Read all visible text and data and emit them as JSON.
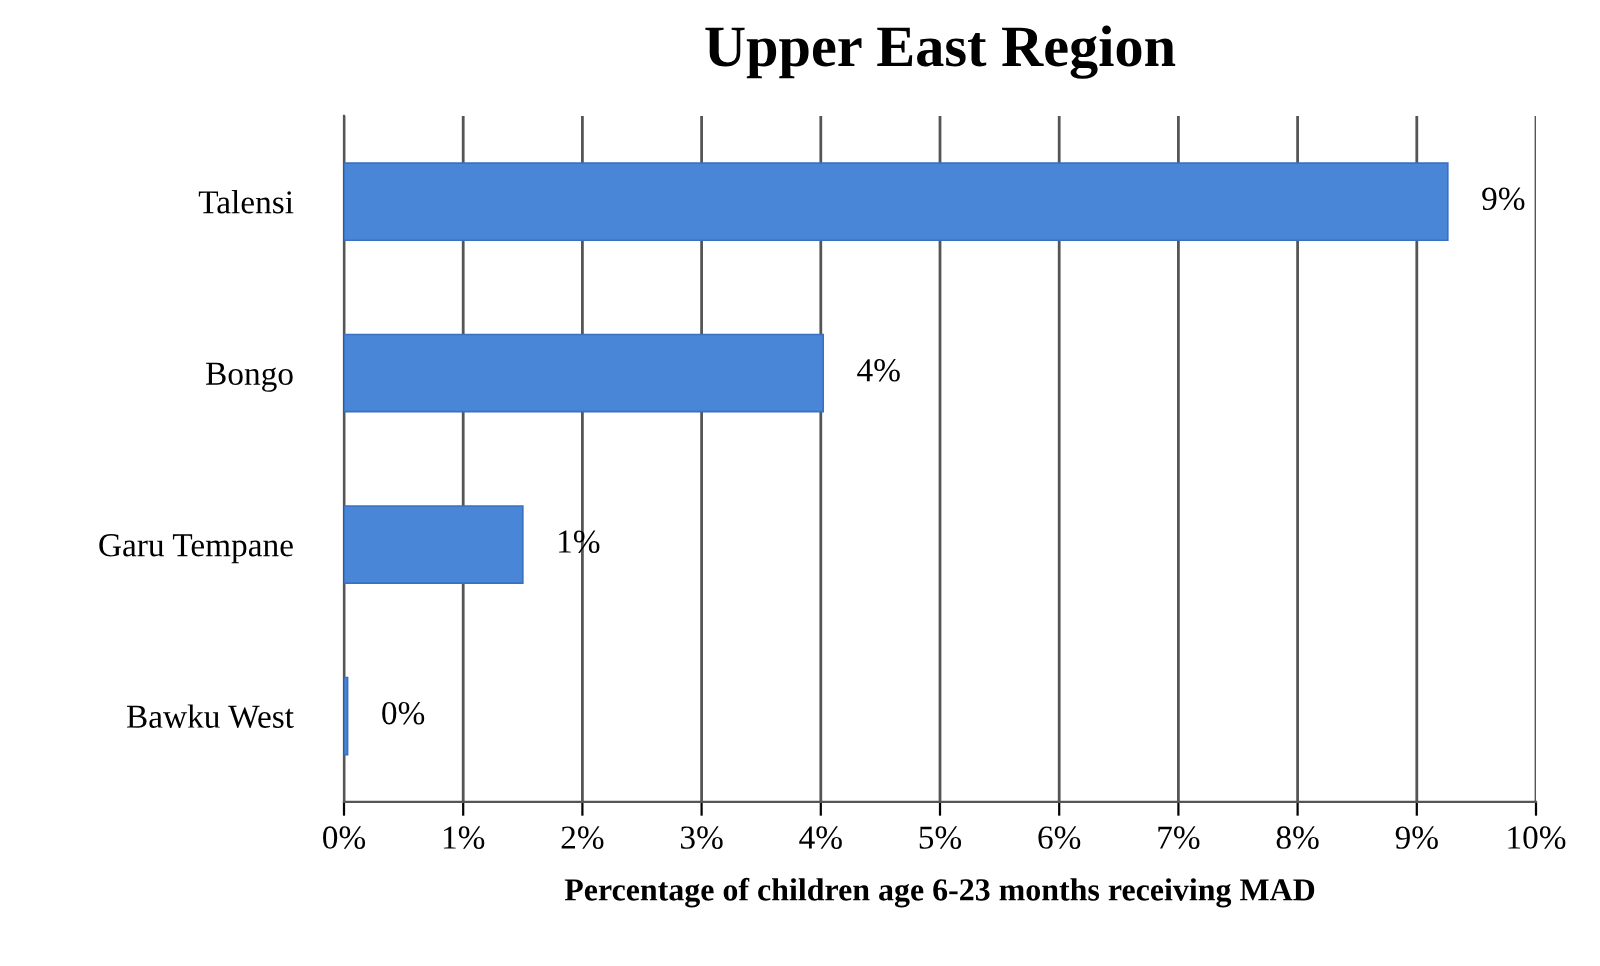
{
  "chart_data": {
    "type": "bar",
    "orientation": "horizontal",
    "title": "Upper East Region",
    "xlabel": "Percentage of children age 6-23 months receiving MAD",
    "categories": [
      "Talensi",
      "Bongo",
      "Garu Tempane",
      "Bawku West"
    ],
    "values": [
      9.26,
      4.02,
      1.5,
      0.03
    ],
    "value_labels": [
      "9%",
      "4%",
      "1%",
      "0%"
    ],
    "color": "#4a86d8",
    "xlim": [
      0,
      10
    ],
    "xticks": [
      {
        "value": 0,
        "label": "0%"
      },
      {
        "value": 1,
        "label": "1%"
      },
      {
        "value": 2,
        "label": "2%"
      },
      {
        "value": 3,
        "label": "3%"
      },
      {
        "value": 4,
        "label": "4%"
      },
      {
        "value": 5,
        "label": "5%"
      },
      {
        "value": 6,
        "label": "6%"
      },
      {
        "value": 7,
        "label": "7%"
      },
      {
        "value": 8,
        "label": "8%"
      },
      {
        "value": 9,
        "label": "9%"
      },
      {
        "value": 10,
        "label": "10%"
      }
    ],
    "grid": "x"
  }
}
